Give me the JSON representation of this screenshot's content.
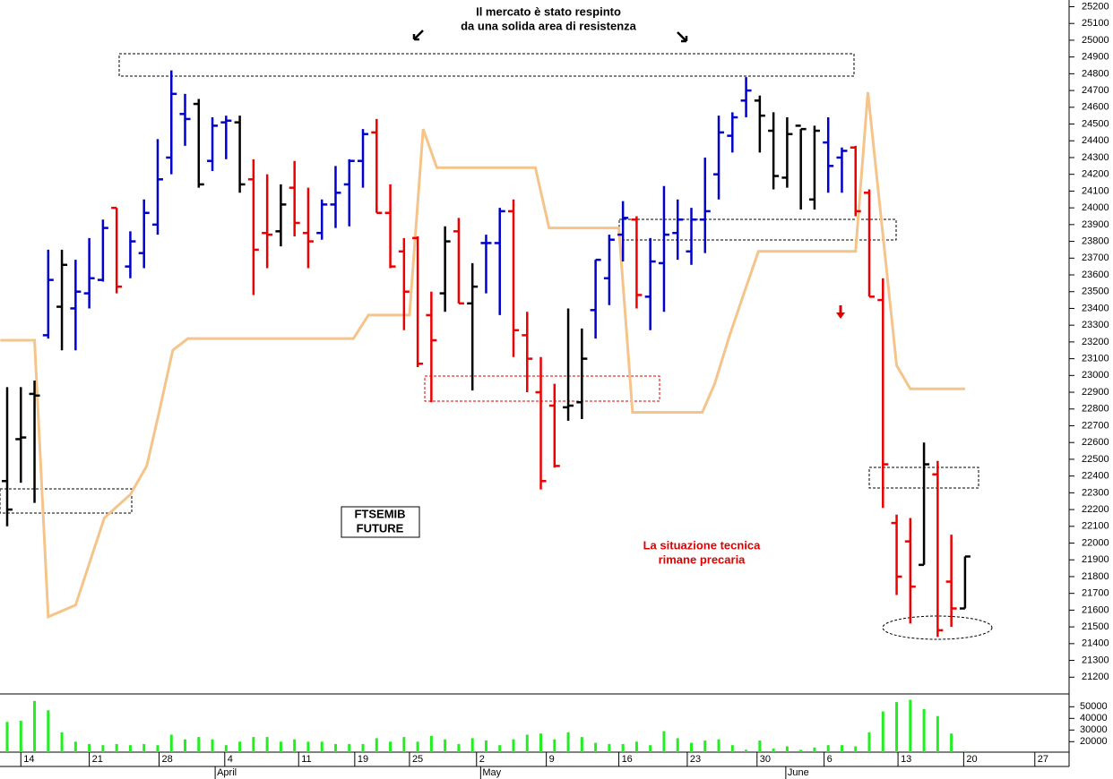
{
  "chart_data": [
    {
      "type": "ohlc",
      "categories": [
        null,
        null,
        null,
        null,
        null,
        null,
        null,
        null,
        null,
        null,
        null,
        null,
        null,
        null,
        null,
        null,
        null,
        null,
        null,
        null,
        null,
        null,
        null,
        null,
        null,
        null,
        null,
        null,
        null,
        null,
        null,
        null,
        null,
        null,
        null,
        null,
        null,
        null,
        null,
        null,
        null,
        null,
        null,
        null,
        null,
        null,
        null,
        null,
        null,
        null,
        null,
        null,
        null,
        null,
        null,
        null,
        null,
        null,
        null,
        null,
        null,
        null,
        null,
        null,
        null,
        null,
        null,
        null,
        null,
        null,
        null
      ],
      "open": [
        22370,
        22620,
        22890,
        23240,
        23410,
        23400,
        23490,
        23570,
        24000,
        23650,
        23730,
        23900,
        24300,
        24560,
        24620,
        24280,
        24510,
        24510,
        24170,
        23850,
        23860,
        24120,
        23850,
        23850,
        24020,
        24140,
        24280,
        24450,
        23970,
        23740,
        23820,
        23360,
        23490,
        23860,
        23430,
        23790,
        23790,
        23980,
        23240,
        22900,
        22820,
        22810,
        22840,
        23390,
        23580,
        23840,
        23930,
        23470,
        23670,
        23850,
        23740,
        23930,
        24200,
        24430,
        24640,
        24640,
        24460,
        24180,
        24490,
        24050,
        24390,
        24300,
        24360,
        24090,
        23450,
        22120,
        22010,
        21870,
        22410,
        21770,
        21610
      ],
      "high": [
        22930,
        22930,
        22970,
        23750,
        23750,
        23690,
        23820,
        23930,
        24000,
        23860,
        24050,
        24410,
        24820,
        24680,
        24650,
        24540,
        24550,
        24550,
        24290,
        24200,
        24140,
        24280,
        24120,
        24050,
        24250,
        24290,
        24470,
        24530,
        24140,
        23820,
        23830,
        23500,
        23890,
        23940,
        23670,
        23840,
        24000,
        24050,
        23380,
        23110,
        22950,
        23400,
        23280,
        23690,
        23840,
        24040,
        23950,
        23820,
        24130,
        24050,
        24000,
        24300,
        24550,
        24570,
        24780,
        24670,
        24570,
        24540,
        24470,
        24490,
        24540,
        24360,
        24370,
        24110,
        23580,
        22170,
        22150,
        22600,
        22490,
        22050,
        21920
      ],
      "low": [
        22100,
        22360,
        22240,
        23220,
        23150,
        23150,
        23400,
        23560,
        23490,
        23580,
        23640,
        23840,
        24200,
        24370,
        24120,
        24220,
        24290,
        24090,
        23480,
        23640,
        23770,
        23830,
        23640,
        23810,
        23880,
        23890,
        24120,
        23970,
        23640,
        23270,
        23050,
        22840,
        23380,
        23430,
        22910,
        23490,
        23360,
        23110,
        22900,
        22320,
        22450,
        22730,
        22740,
        23220,
        23420,
        23680,
        23400,
        23270,
        23380,
        23690,
        23660,
        23730,
        24050,
        24330,
        24540,
        24330,
        24110,
        24120,
        23990,
        23990,
        24090,
        24090,
        23950,
        23470,
        22210,
        21690,
        21520,
        21870,
        21440,
        21500,
        21610
      ],
      "close": [
        22200,
        22630,
        22880,
        23570,
        23660,
        23500,
        23580,
        23880,
        23530,
        23800,
        23970,
        24170,
        24680,
        24530,
        24140,
        24490,
        24520,
        24140,
        23750,
        23840,
        24020,
        23910,
        23800,
        24020,
        24090,
        24280,
        24440,
        23970,
        23650,
        23500,
        23070,
        23210,
        23800,
        23430,
        23530,
        23790,
        23980,
        23270,
        23100,
        22370,
        22460,
        22820,
        23100,
        23690,
        23810,
        23940,
        23480,
        23680,
        23840,
        23930,
        23930,
        23980,
        24450,
        24540,
        24700,
        24550,
        24190,
        24440,
        24470,
        24460,
        24250,
        24340,
        23980,
        23470,
        22470,
        21800,
        21740,
        22470,
        21480,
        21610,
        21920
      ],
      "colors": [
        "#000000",
        "#000000",
        "#000000",
        "#0000cc",
        "#000000",
        "#0000cc",
        "#0000cc",
        "#0000cc",
        "#ee0000",
        "#0000cc",
        "#0000cc",
        "#0000cc",
        "#0000cc",
        "#0000cc",
        "#000000",
        "#0000cc",
        "#0000cc",
        "#000000",
        "#ee0000",
        "#ee0000",
        "#000000",
        "#ee0000",
        "#ee0000",
        "#0000cc",
        "#0000cc",
        "#0000cc",
        "#0000cc",
        "#ee0000",
        "#ee0000",
        "#ee0000",
        "#ee0000",
        "#ee0000",
        "#000000",
        "#ee0000",
        "#000000",
        "#0000cc",
        "#0000cc",
        "#ee0000",
        "#ee0000",
        "#ee0000",
        "#ee0000",
        "#000000",
        "#000000",
        "#0000cc",
        "#0000cc",
        "#0000cc",
        "#ee0000",
        "#0000cc",
        "#0000cc",
        "#0000cc",
        "#0000cc",
        "#0000cc",
        "#0000cc",
        "#0000cc",
        "#0000cc",
        "#000000",
        "#000000",
        "#000000",
        "#000000",
        "#000000",
        "#0000cc",
        "#0000cc",
        "#ee0000",
        "#ee0000",
        "#ee0000",
        "#ee0000",
        "#ee0000",
        "#000000",
        "#ee0000",
        "#ee0000",
        "#000000"
      ],
      "trail": {
        "color": "#f5c48a",
        "x": [
          -0.5,
          2.0,
          3.0,
          5.0,
          7.1,
          9.0,
          10.2,
          11.1,
          12.1,
          13.2,
          25.3,
          26.4,
          29.4,
          30.4,
          31.4,
          38.6,
          39.6,
          44.7,
          45.7,
          50.8,
          51.7,
          52.8,
          53.8,
          54.9,
          62.0,
          62.9,
          65.0,
          66.0,
          70.0
        ],
        "values": [
          23210,
          23210,
          21560,
          21630,
          22150,
          22290,
          22460,
          22780,
          23150,
          23220,
          23220,
          23360,
          23360,
          24470,
          24240,
          24240,
          23880,
          23880,
          22780,
          22780,
          22950,
          23240,
          23480,
          23740,
          23740,
          24690,
          23060,
          22920,
          22920
        ]
      },
      "ylim": [
        21100,
        25240
      ],
      "yticks": [
        21200,
        21300,
        21400,
        21500,
        21600,
        21700,
        21800,
        21900,
        22000,
        22100,
        22200,
        22300,
        22400,
        22500,
        22600,
        22700,
        22800,
        22900,
        23000,
        23100,
        23200,
        23300,
        23400,
        23500,
        23600,
        23700,
        23800,
        23900,
        24000,
        24100,
        24200,
        24300,
        24400,
        24500,
        24600,
        24700,
        24800,
        24900,
        25000,
        25100,
        25200
      ],
      "xticks": [
        {
          "value": 1.0,
          "label": "14"
        },
        {
          "value": 6.0,
          "label": "21"
        },
        {
          "value": 11.1,
          "label": "28"
        },
        {
          "value": 15.9,
          "label": "4"
        },
        {
          "value": 21.3,
          "label": "11"
        },
        {
          "value": 25.4,
          "label": "19"
        },
        {
          "value": 29.4,
          "label": "25"
        },
        {
          "value": 34.3,
          "label": "2"
        },
        {
          "value": 39.4,
          "label": "9"
        },
        {
          "value": 44.7,
          "label": "16"
        },
        {
          "value": 49.7,
          "label": "23"
        },
        {
          "value": 54.8,
          "label": "30"
        },
        {
          "value": 59.7,
          "label": "6"
        },
        {
          "value": 65.1,
          "label": "13"
        },
        {
          "value": 69.9,
          "label": "20"
        },
        {
          "value": 75.1,
          "label": "27"
        }
      ],
      "months": [
        {
          "value": 15.2,
          "label": "April"
        },
        {
          "value": 34.6,
          "label": "May"
        },
        {
          "value": 56.9,
          "label": "June"
        }
      ],
      "annotations": [
        "Il mercato è stato respinto",
        "da una solida area di resistenza",
        "FTSEMIB",
        "FUTURE",
        "La situazione tecnica",
        "rimane precaria"
      ]
    },
    {
      "type": "bar",
      "color": "#22ee22",
      "values": [
        37000,
        38000,
        55000,
        47000,
        28000,
        20000,
        18000,
        17000,
        18000,
        17000,
        18000,
        17000,
        26000,
        22000,
        24000,
        22000,
        17000,
        20000,
        24000,
        24000,
        20000,
        22000,
        20000,
        20000,
        18000,
        18000,
        18000,
        23000,
        20000,
        24000,
        20000,
        25000,
        22000,
        18000,
        23000,
        21000,
        17000,
        22000,
        26000,
        27000,
        22000,
        28000,
        24000,
        19000,
        18000,
        18000,
        20000,
        17000,
        29000,
        23000,
        19000,
        21000,
        22000,
        17000,
        13000,
        21000,
        14000,
        16000,
        13000,
        15000,
        17000,
        17000,
        16000,
        28000,
        46000,
        54000,
        56000,
        48000,
        42000,
        27000,
        12000
      ],
      "ylim": [
        11000,
        61000
      ],
      "yticks": [
        20000,
        30000,
        40000,
        50000
      ]
    }
  ]
}
